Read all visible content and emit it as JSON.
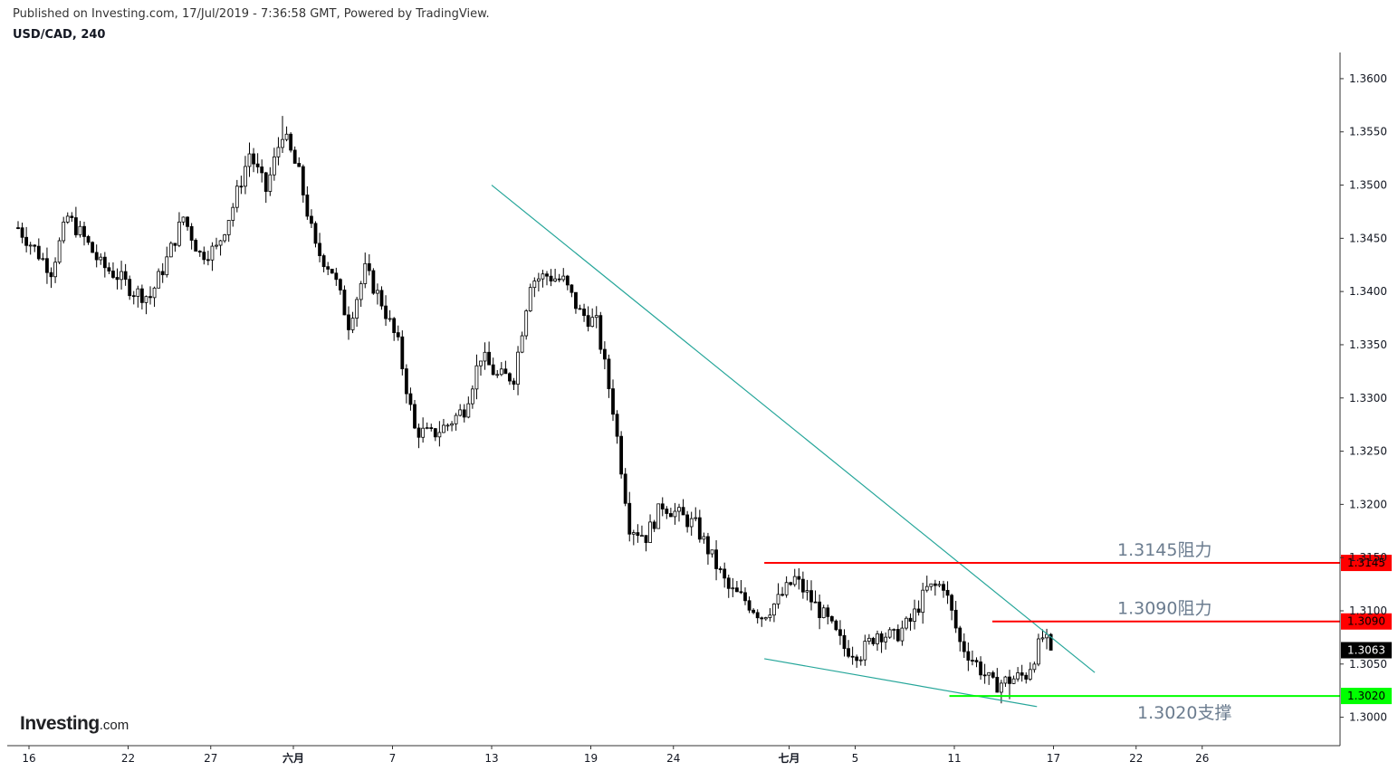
{
  "header": {
    "published": "Published on Investing.com, 17/Jul/2019 - 7:36:58 GMT, Powered by TradingView.",
    "symbol": "USD/CAD, 240"
  },
  "logo": {
    "main": "Investing",
    "suffix": ".com"
  },
  "colors": {
    "candle": "#000000",
    "trendline": "#26a69a",
    "resistance": "#ff0000",
    "support": "#00ff00",
    "annotation_text": "#6b7c8f",
    "last_price_bg": "#000000"
  },
  "chart_data": {
    "type": "candlestick",
    "symbol": "USD/CAD",
    "interval": "240",
    "x_ticks": [
      {
        "label": "16",
        "day": 0
      },
      {
        "label": "22",
        "day": 6
      },
      {
        "label": "27",
        "day": 11
      },
      {
        "label": "六月",
        "day": 16
      },
      {
        "label": "7",
        "day": 22
      },
      {
        "label": "13",
        "day": 28
      },
      {
        "label": "19",
        "day": 34
      },
      {
        "label": "24",
        "day": 39
      },
      {
        "label": "七月",
        "day": 46
      },
      {
        "label": "5",
        "day": 50
      },
      {
        "label": "11",
        "day": 56
      },
      {
        "label": "17",
        "day": 62
      },
      {
        "label": "22",
        "day": 67
      },
      {
        "label": "26",
        "day": 71
      }
    ],
    "y_ticks": [
      "1.3000",
      "1.3050",
      "1.3100",
      "1.3150",
      "1.3200",
      "1.3250",
      "1.3300",
      "1.3350",
      "1.3400",
      "1.3450",
      "1.3500",
      "1.3550",
      "1.3600"
    ],
    "ylim": [
      1.2975,
      1.3645
    ],
    "close_path": [
      [
        0,
        1.346
      ],
      [
        1,
        1.344
      ],
      [
        2,
        1.342
      ],
      [
        3,
        1.347
      ],
      [
        4,
        1.345
      ],
      [
        5,
        1.3425
      ],
      [
        6,
        1.3415
      ],
      [
        7,
        1.34
      ],
      [
        8,
        1.3395
      ],
      [
        9,
        1.343
      ],
      [
        10,
        1.347
      ],
      [
        11,
        1.3435
      ],
      [
        12,
        1.344
      ],
      [
        13,
        1.348
      ],
      [
        14,
        1.353
      ],
      [
        15,
        1.3495
      ],
      [
        16,
        1.355
      ],
      [
        17,
        1.351
      ],
      [
        18,
        1.344
      ],
      [
        19,
        1.342
      ],
      [
        20,
        1.337
      ],
      [
        21,
        1.342
      ],
      [
        22,
        1.339
      ],
      [
        23,
        1.335
      ],
      [
        24,
        1.327
      ],
      [
        25,
        1.3265
      ],
      [
        26,
        1.3275
      ],
      [
        27,
        1.329
      ],
      [
        28,
        1.334
      ],
      [
        29,
        1.332
      ],
      [
        30,
        1.332
      ],
      [
        31,
        1.341
      ],
      [
        32,
        1.3415
      ],
      [
        33,
        1.341
      ],
      [
        34,
        1.338
      ],
      [
        35,
        1.337
      ],
      [
        36,
        1.329
      ],
      [
        37,
        1.318
      ],
      [
        38,
        1.317
      ],
      [
        39,
        1.32
      ],
      [
        40,
        1.319
      ],
      [
        41,
        1.318
      ],
      [
        42,
        1.315
      ],
      [
        43,
        1.312
      ],
      [
        44,
        1.311
      ],
      [
        45,
        1.3095
      ],
      [
        46,
        1.311
      ],
      [
        47,
        1.313
      ],
      [
        48,
        1.311
      ],
      [
        49,
        1.309
      ],
      [
        50,
        1.3065
      ],
      [
        51,
        1.306
      ],
      [
        52,
        1.308
      ],
      [
        53,
        1.3075
      ],
      [
        54,
        1.309
      ],
      [
        55,
        1.312
      ],
      [
        56,
        1.3125
      ],
      [
        57,
        1.307
      ],
      [
        58,
        1.305
      ],
      [
        59,
        1.303
      ],
      [
        60,
        1.3035
      ],
      [
        61,
        1.304
      ],
      [
        62,
        1.3075
      ],
      [
        62.6,
        1.3063
      ]
    ],
    "high_low_extremes": {
      "high": {
        "day": 16,
        "value": 1.3565
      },
      "low": {
        "day": 60,
        "value": 1.3017
      }
    },
    "last_price": "1.3063",
    "trendlines": [
      {
        "name": "downtrend",
        "from": [
          28,
          1.35
        ],
        "to": [
          64.5,
          1.3042
        ]
      },
      {
        "name": "lower-wedge",
        "from": [
          44.5,
          1.3055
        ],
        "to": [
          61,
          1.301
        ]
      }
    ],
    "levels": [
      {
        "value": 1.3145,
        "label": "1.3145",
        "annotation": "1.3145阻力",
        "from_day": 44.5,
        "kind": "resistance"
      },
      {
        "value": 1.309,
        "label": "1.3090",
        "annotation": "1.3090阻力",
        "from_day": 58.3,
        "kind": "resistance"
      },
      {
        "value": 1.302,
        "label": "1.3020",
        "annotation": "1.3020支撑",
        "from_day": 55.7,
        "kind": "support"
      }
    ]
  }
}
